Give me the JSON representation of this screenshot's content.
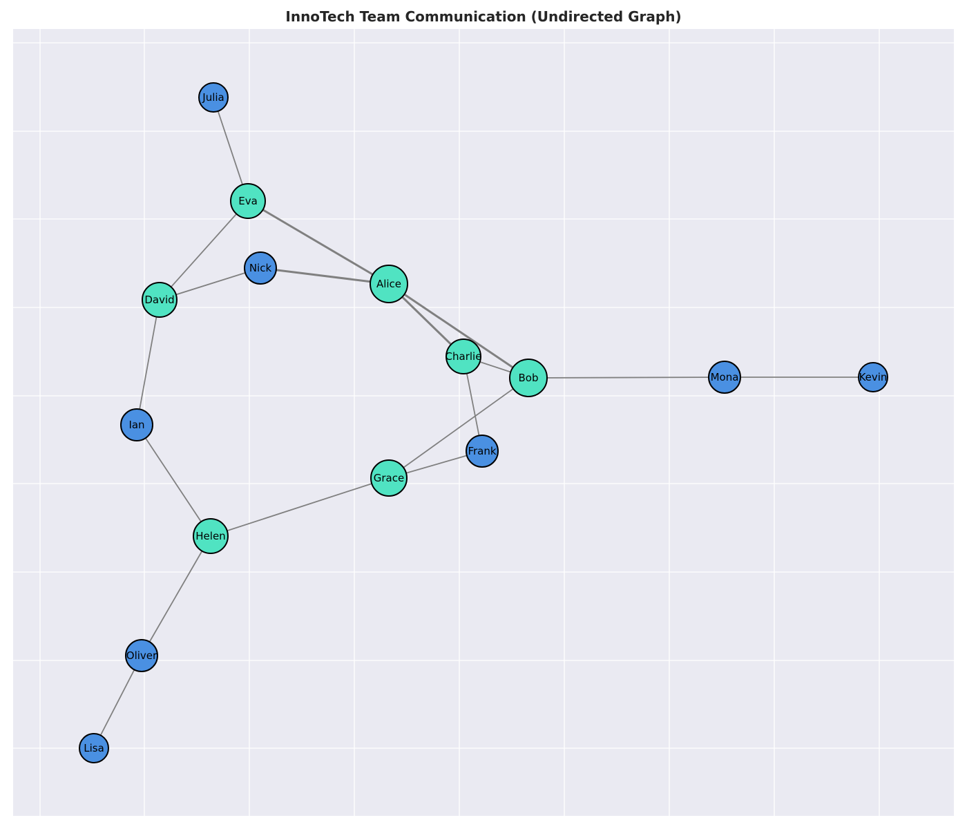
{
  "title": "InnoTech Team Communication (Undirected Graph)",
  "colors": {
    "background": "#eaeaf2",
    "grid": "#ffffff",
    "edge": "#808080",
    "node_outline": "#000000",
    "group_a": "#50e3c2",
    "group_b": "#4a90e2"
  },
  "nodes": [
    {
      "id": "Julia",
      "label": "Julia",
      "group": "group_b"
    },
    {
      "id": "Eva",
      "label": "Eva",
      "group": "group_a"
    },
    {
      "id": "Nick",
      "label": "Nick",
      "group": "group_b"
    },
    {
      "id": "Alice",
      "label": "Alice",
      "group": "group_a"
    },
    {
      "id": "David",
      "label": "David",
      "group": "group_a"
    },
    {
      "id": "Charlie",
      "label": "Charlie",
      "group": "group_a"
    },
    {
      "id": "Bob",
      "label": "Bob",
      "group": "group_a"
    },
    {
      "id": "Mona",
      "label": "Mona",
      "group": "group_b"
    },
    {
      "id": "Kevin",
      "label": "Kevin",
      "group": "group_b"
    },
    {
      "id": "Ian",
      "label": "Ian",
      "group": "group_b"
    },
    {
      "id": "Frank",
      "label": "Frank",
      "group": "group_b"
    },
    {
      "id": "Grace",
      "label": "Grace",
      "group": "group_a"
    },
    {
      "id": "Helen",
      "label": "Helen",
      "group": "group_a"
    },
    {
      "id": "Oliver",
      "label": "Oliver",
      "group": "group_b"
    },
    {
      "id": "Lisa",
      "label": "Lisa",
      "group": "group_b"
    }
  ],
  "edges": [
    {
      "source": "Julia",
      "target": "Eva",
      "weight": 1
    },
    {
      "source": "Eva",
      "target": "Alice",
      "weight": 2
    },
    {
      "source": "Eva",
      "target": "David",
      "weight": 1
    },
    {
      "source": "Nick",
      "target": "Alice",
      "weight": 2
    },
    {
      "source": "Nick",
      "target": "David",
      "weight": 1
    },
    {
      "source": "Alice",
      "target": "Charlie",
      "weight": 2
    },
    {
      "source": "Alice",
      "target": "Bob",
      "weight": 2
    },
    {
      "source": "Charlie",
      "target": "Bob",
      "weight": 1
    },
    {
      "source": "Charlie",
      "target": "Frank",
      "weight": 1
    },
    {
      "source": "Bob",
      "target": "Mona",
      "weight": 1
    },
    {
      "source": "Mona",
      "target": "Kevin",
      "weight": 1
    },
    {
      "source": "Bob",
      "target": "Grace",
      "weight": 1
    },
    {
      "source": "Grace",
      "target": "Frank",
      "weight": 1
    },
    {
      "source": "Grace",
      "target": "Helen",
      "weight": 1
    },
    {
      "source": "David",
      "target": "Ian",
      "weight": 1
    },
    {
      "source": "Ian",
      "target": "Helen",
      "weight": 1
    },
    {
      "source": "Helen",
      "target": "Oliver",
      "weight": 1
    },
    {
      "source": "Oliver",
      "target": "Lisa",
      "weight": 1
    }
  ]
}
